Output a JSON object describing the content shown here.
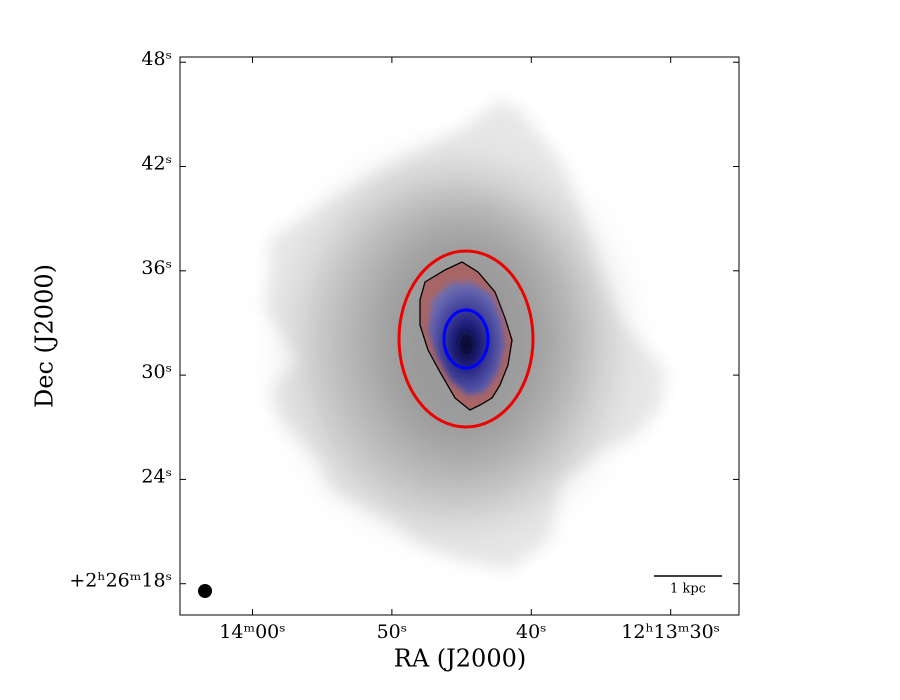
{
  "chart_data": {
    "type": "image",
    "xlabel": "RA (J2000)",
    "ylabel": "Dec (J2000)",
    "xlim": [
      65.2,
      25.1
    ],
    "xticks": [
      {
        "value": 60,
        "label": "14ᵐ00ˢ"
      },
      {
        "value": 50,
        "label": "50ˢ"
      },
      {
        "value": 40,
        "label": "40ˢ"
      },
      {
        "value": 30,
        "label": "12ʰ13ᵐ30ˢ"
      }
    ],
    "ylim": [
      16.2,
      48.3
    ],
    "yticks": [
      {
        "value": 18,
        "label": "+2ʰ26ᵐ18ˢ"
      },
      {
        "value": 24,
        "label": "24ˢ"
      },
      {
        "value": 30,
        "label": "30ˢ"
      },
      {
        "value": 36,
        "label": "36ˢ"
      },
      {
        "value": 42,
        "label": "42ˢ"
      },
      {
        "value": 48,
        "label": "48ˢ"
      }
    ],
    "scale_bar": "1 kpc"
  }
}
